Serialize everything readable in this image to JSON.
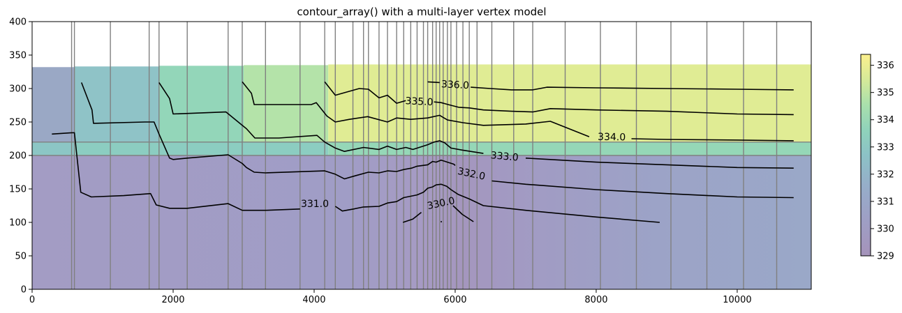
{
  "chart_data": {
    "type": "contour",
    "title": "contour_array() with a multi-layer vertex model",
    "xlabel": "",
    "ylabel": "",
    "xlim": [
      0,
      11050
    ],
    "ylim": [
      0,
      400
    ],
    "xticks": [
      0,
      2000,
      4000,
      6000,
      8000,
      10000
    ],
    "yticks": [
      0,
      50,
      100,
      150,
      200,
      250,
      300,
      350,
      400
    ],
    "colormap": "viridis (alpha 0.5)",
    "colorbar": {
      "range": [
        329,
        336.4
      ],
      "ticks": [
        329,
        330,
        331,
        332,
        333,
        334,
        335,
        336
      ]
    },
    "layer_boundaries": [
      {
        "name": "layer-1-2",
        "y": 220
      },
      {
        "name": "layer-2-3",
        "y": 200
      }
    ],
    "model_top": {
      "x": [
        0,
        600,
        1800,
        3000,
        4200,
        11050
      ],
      "y": [
        332,
        333,
        334,
        335,
        336,
        336
      ]
    },
    "vertical_grid_lines": [
      560,
      600,
      1110,
      1660,
      1800,
      2200,
      2780,
      2980,
      3310,
      3800,
      4150,
      4300,
      4550,
      4700,
      4770,
      4920,
      5040,
      5170,
      5270,
      5370,
      5460,
      5550,
      5610,
      5680,
      5730,
      5780,
      5830,
      5890,
      5940,
      6020,
      6110,
      6200,
      6310,
      6520,
      6830,
      7100,
      7560,
      8060,
      8570,
      9060,
      9570,
      10090,
      10560
    ],
    "fill_colors": {
      "top_layer": [
        "#9aa8c5",
        "#8fc3c7",
        "#93d6b9",
        "#b4e3a9",
        "#e0ec94",
        "#fbef8f"
      ],
      "mid_layer": [
        "#8cc6c5",
        "#8ccdc1",
        "#95d7b7"
      ],
      "bottom_layer": [
        "#a39cc4",
        "#a59ac2",
        "#9aa6c8"
      ]
    },
    "contours": [
      {
        "level": 336.0,
        "label": "336.0",
        "label_pos": [
          6000,
          305
        ],
        "label_angle": 3,
        "segments": [
          [
            [
              5610,
              310
            ],
            [
              5780,
              309
            ]
          ],
          [
            [
              6220,
              302
            ],
            [
              6500,
              300
            ],
            [
              6800,
              298
            ],
            [
              7100,
              298
            ],
            [
              7300,
              302
            ],
            [
              8000,
              301
            ],
            [
              9000,
              300
            ],
            [
              10000,
              299
            ],
            [
              10800,
              298
            ]
          ]
        ]
      },
      {
        "level": 335.0,
        "label": "335.0",
        "label_pos": [
          5490,
          280
        ],
        "label_angle": 3,
        "segments": [
          [
            [
              4150,
              310
            ],
            [
              4300,
              290
            ],
            [
              4640,
              300
            ],
            [
              4770,
              299
            ],
            [
              4920,
              286
            ],
            [
              5040,
              290
            ],
            [
              5170,
              278
            ],
            [
              5300,
              282
            ]
          ],
          [
            [
              5700,
              280
            ],
            [
              5800,
              279
            ],
            [
              5900,
              276
            ],
            [
              6050,
              272
            ],
            [
              6200,
              271
            ],
            [
              6400,
              268
            ],
            [
              6800,
              266
            ],
            [
              7100,
              265
            ],
            [
              7350,
              270
            ],
            [
              8000,
              268
            ],
            [
              9000,
              266
            ],
            [
              10000,
              262
            ],
            [
              10800,
              261
            ]
          ]
        ]
      },
      {
        "level": 334.0,
        "label": "334.0",
        "label_pos": [
          8220,
          227
        ],
        "label_angle": 1,
        "segments": [
          [
            [
              2980,
              310
            ],
            [
              3110,
              293
            ],
            [
              3150,
              276
            ],
            [
              3960,
              276
            ],
            [
              4030,
              279
            ],
            [
              4180,
              259
            ],
            [
              4300,
              250
            ],
            [
              4500,
              254
            ],
            [
              4760,
              258
            ],
            [
              5040,
              250
            ],
            [
              5170,
              256
            ],
            [
              5370,
              254
            ],
            [
              5610,
              256
            ],
            [
              5780,
              260
            ],
            [
              5890,
              253
            ],
            [
              6110,
              249
            ],
            [
              6400,
              245
            ],
            [
              7000,
              247
            ],
            [
              7350,
              251
            ],
            [
              7900,
              228
            ]
          ],
          [
            [
              8500,
              225
            ],
            [
              9000,
              224
            ],
            [
              10000,
              223
            ],
            [
              10800,
              222
            ]
          ]
        ]
      },
      {
        "level": 333.0,
        "label": "333.0",
        "label_pos": [
          6700,
          198
        ],
        "label_angle": 5,
        "segments": [
          [
            [
              1800,
              309
            ],
            [
              1950,
              285
            ],
            [
              2000,
              262
            ],
            [
              2750,
              265
            ],
            [
              2980,
              245
            ],
            [
              3040,
              240
            ],
            [
              3160,
              226
            ],
            [
              3500,
              226
            ],
            [
              4040,
              230
            ],
            [
              4150,
              220
            ],
            [
              4300,
              211
            ],
            [
              4430,
              206
            ],
            [
              4700,
              212
            ],
            [
              4920,
              209
            ],
            [
              5040,
              214
            ],
            [
              5170,
              209
            ],
            [
              5300,
              212
            ],
            [
              5400,
              209
            ],
            [
              5610,
              216
            ],
            [
              5700,
              220
            ],
            [
              5780,
              222
            ],
            [
              5850,
              219
            ],
            [
              5940,
              211
            ],
            [
              6100,
              208
            ],
            [
              6400,
              203
            ]
          ],
          [
            [
              7000,
              196
            ],
            [
              7500,
              193
            ],
            [
              8000,
              190
            ],
            [
              9000,
              186
            ],
            [
              10000,
              182
            ],
            [
              10800,
              181
            ]
          ]
        ]
      },
      {
        "level": 332.0,
        "label": "332.0",
        "label_pos": [
          6230,
          172
        ],
        "label_angle": 12,
        "segments": [
          [
            [
              700,
              309
            ],
            [
              850,
              268
            ],
            [
              870,
              248
            ],
            [
              1600,
              250
            ],
            [
              1730,
              250
            ],
            [
              1800,
              232
            ],
            [
              1950,
              196
            ],
            [
              2000,
              194
            ],
            [
              2200,
              196
            ],
            [
              2780,
              201
            ],
            [
              2980,
              188
            ],
            [
              3040,
              182
            ],
            [
              3150,
              175
            ],
            [
              3310,
              174
            ],
            [
              4150,
              177
            ],
            [
              4300,
              172
            ],
            [
              4430,
              165
            ],
            [
              4560,
              169
            ],
            [
              4770,
              175
            ],
            [
              4920,
              174
            ],
            [
              5040,
              177
            ],
            [
              5170,
              176
            ],
            [
              5270,
              179
            ],
            [
              5380,
              181
            ],
            [
              5460,
              184
            ],
            [
              5610,
              186
            ],
            [
              5680,
              191
            ],
            [
              5730,
              190
            ],
            [
              5800,
              193
            ],
            [
              5890,
              190
            ],
            [
              5980,
              187
            ],
            [
              6000,
              185
            ]
          ],
          [
            [
              6520,
              162
            ],
            [
              7000,
              157
            ],
            [
              8000,
              149
            ],
            [
              9000,
              143
            ],
            [
              10000,
              138
            ],
            [
              10800,
              137
            ]
          ]
        ]
      },
      {
        "level": 331.0,
        "label": "331.0",
        "label_pos": [
          4010,
          127
        ],
        "label_angle": 0,
        "segments": [
          [
            [
              280,
              232
            ],
            [
              560,
              234
            ],
            [
              600,
              234
            ],
            [
              690,
              145
            ],
            [
              840,
              138
            ],
            [
              1300,
              140
            ],
            [
              1680,
              143
            ],
            [
              1760,
              126
            ],
            [
              1950,
              121
            ],
            [
              2200,
              121
            ],
            [
              2780,
              128
            ],
            [
              2980,
              118
            ],
            [
              3310,
              118
            ],
            [
              3800,
              120
            ]
          ],
          [
            [
              4300,
              124
            ],
            [
              4400,
              117
            ],
            [
              4560,
              120
            ],
            [
              4700,
              123
            ],
            [
              4920,
              124
            ],
            [
              5040,
              129
            ],
            [
              5170,
              131
            ],
            [
              5270,
              137
            ],
            [
              5460,
              141
            ],
            [
              5550,
              145
            ],
            [
              5610,
              151
            ],
            [
              5680,
              153
            ],
            [
              5730,
              156
            ],
            [
              5800,
              157
            ],
            [
              5880,
              154
            ],
            [
              5940,
              149
            ],
            [
              6040,
              142
            ],
            [
              6200,
              135
            ],
            [
              6400,
              125
            ],
            [
              7000,
              118
            ],
            [
              8000,
              108
            ],
            [
              8900,
              100
            ]
          ]
        ]
      },
      {
        "level": 330.0,
        "label": "330.0",
        "label_pos": [
          5800,
          128
        ],
        "label_angle": -12,
        "segments": [
          [
            [
              5260,
              100
            ],
            [
              5400,
              105
            ],
            [
              5520,
              115
            ]
          ],
          [
            [
              5970,
              125
            ],
            [
              6100,
              112
            ],
            [
              6260,
              101
            ]
          ]
        ]
      },
      {
        "level": 330.0,
        "label": "",
        "label_pos": [
          0,
          0
        ],
        "label_angle": 0,
        "segments": [
          [
            [
              5800,
              100
            ],
            [
              5805,
              102
            ]
          ]
        ]
      }
    ]
  }
}
